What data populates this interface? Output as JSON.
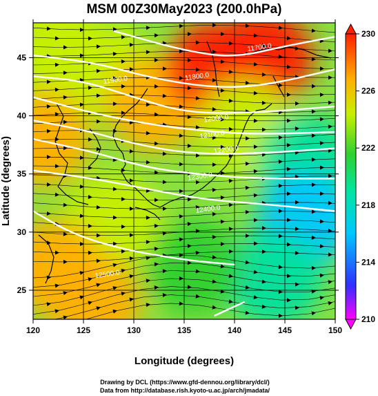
{
  "chart_data": {
    "type": "heatmap",
    "title": "MSM 00Z30May2023 (200.0hPa)",
    "xlabel": "Longitude (degrees)",
    "ylabel": "Latitude  (degrees)",
    "xlim": [
      120,
      150
    ],
    "ylim": [
      22.5,
      48
    ],
    "x_ticks": [
      120,
      125,
      130,
      135,
      140,
      145,
      150
    ],
    "y_ticks": [
      25,
      30,
      35,
      40,
      45
    ],
    "x_tick_labels": [
      "120",
      "125",
      "130",
      "135",
      "140",
      "145",
      "150"
    ],
    "y_tick_labels": [
      "25",
      "30",
      "35",
      "40",
      "45"
    ],
    "grid": true,
    "colorbar": {
      "min": 210,
      "max": 230,
      "ticks": [
        210,
        214,
        218,
        222,
        226,
        230
      ],
      "tick_labels": [
        "210",
        "214",
        "218",
        "222",
        "226",
        "230"
      ],
      "colors": [
        "#ff00ff",
        "#2020ff",
        "#00c8ff",
        "#00e0a0",
        "#30d030",
        "#c8f000",
        "#ffb000",
        "#ff2000"
      ]
    },
    "shading_field": "temperature (K)",
    "temperature_samples": [
      {
        "lon": 122,
        "lat": 46,
        "value": 223
      },
      {
        "lon": 127,
        "lat": 44,
        "value": 225
      },
      {
        "lon": 132,
        "lat": 41,
        "value": 226
      },
      {
        "lon": 138,
        "lat": 44,
        "value": 229
      },
      {
        "lon": 143,
        "lat": 45,
        "value": 229
      },
      {
        "lon": 141,
        "lat": 39,
        "value": 224
      },
      {
        "lon": 147,
        "lat": 36,
        "value": 219
      },
      {
        "lon": 147,
        "lat": 31,
        "value": 217
      },
      {
        "lon": 144,
        "lat": 26,
        "value": 219
      },
      {
        "lon": 128,
        "lat": 31,
        "value": 225
      },
      {
        "lon": 122,
        "lat": 27,
        "value": 226
      },
      {
        "lon": 126,
        "lat": 24,
        "value": 226
      },
      {
        "lon": 136,
        "lat": 27,
        "value": 222
      },
      {
        "lon": 121,
        "lat": 38,
        "value": 226
      }
    ],
    "contours": [
      {
        "label": "11700.0",
        "points": [
          [
            128,
            47.3
          ],
          [
            135,
            45.6
          ],
          [
            140,
            45.0
          ],
          [
            145,
            46.0
          ],
          [
            150,
            46.8
          ]
        ]
      },
      {
        "label": "11800.0",
        "points": [
          [
            120,
            45.2
          ],
          [
            126,
            44.6
          ],
          [
            132,
            43.2
          ],
          [
            138,
            42.4
          ],
          [
            143,
            42.6
          ],
          [
            150,
            44.0
          ]
        ]
      },
      {
        "label": "11900.0",
        "points": [
          [
            120,
            43.4
          ],
          [
            125,
            43.0
          ],
          [
            130,
            41.6
          ],
          [
            135,
            40.3
          ],
          [
            141,
            40.2
          ],
          [
            150,
            40.8
          ]
        ]
      },
      {
        "label": "12000.0",
        "points": [
          [
            120,
            41.6
          ],
          [
            126,
            40.2
          ],
          [
            132,
            39.2
          ],
          [
            137,
            38.7
          ],
          [
            142,
            38.4
          ],
          [
            150,
            38.6
          ]
        ]
      },
      {
        "label": "12100.0",
        "points": [
          [
            120,
            39.6
          ],
          [
            125,
            38.8
          ],
          [
            130,
            37.6
          ],
          [
            135,
            36.8
          ],
          [
            141,
            36.7
          ],
          [
            150,
            37.2
          ]
        ]
      },
      {
        "label": "12200.0",
        "points": [
          [
            120,
            38.0
          ],
          [
            126,
            36.9
          ],
          [
            131,
            35.6
          ],
          [
            136,
            35.0
          ],
          [
            142,
            34.6
          ],
          [
            150,
            34.6
          ]
        ]
      },
      {
        "label": "12300.0",
        "points": [
          [
            120,
            35.3
          ],
          [
            126,
            34.6
          ],
          [
            132,
            33.6
          ],
          [
            137,
            32.8
          ],
          [
            143,
            32.4
          ],
          [
            150,
            31.8
          ]
        ]
      },
      {
        "label": "12400.0",
        "points": [
          [
            120,
            31.8
          ],
          [
            124,
            29.8
          ],
          [
            129,
            28.5
          ],
          [
            135,
            27.6
          ],
          [
            140,
            27.2
          ]
        ]
      },
      {
        "label": "12500.0",
        "points": [
          [
            138,
            22.8
          ],
          [
            141,
            24.0
          ]
        ]
      }
    ],
    "contour_labels": [
      {
        "text": "11700.0",
        "lon": 142.5,
        "lat": 45.7
      },
      {
        "text": "11800.0",
        "lon": 136.3,
        "lat": 43.2
      },
      {
        "text": "11900.0",
        "lon": 128.2,
        "lat": 42.9
      },
      {
        "text": "12000.0",
        "lon": 138.2,
        "lat": 39.6
      },
      {
        "text": "12100.0",
        "lon": 137.8,
        "lat": 38.2
      },
      {
        "text": "12200.0",
        "lon": 139.2,
        "lat": 36.9
      },
      {
        "text": "12300.0",
        "lon": 136.6,
        "lat": 34.6
      },
      {
        "text": "12400.0",
        "lon": 137.4,
        "lat": 31.8
      },
      {
        "text": "12500.0",
        "lon": 127.4,
        "lat": 26.2
      }
    ],
    "wind_streamlines": "westerly flow, strongest mid-latitudes, anticyclonic curvature south of 30N",
    "credits": [
      "Drawing by DCL (https://www.gfd-dennou.org/library/dcl/)",
      "Data from http://database.rish.kyoto-u.ac.jp/arch/jmadata/"
    ]
  }
}
